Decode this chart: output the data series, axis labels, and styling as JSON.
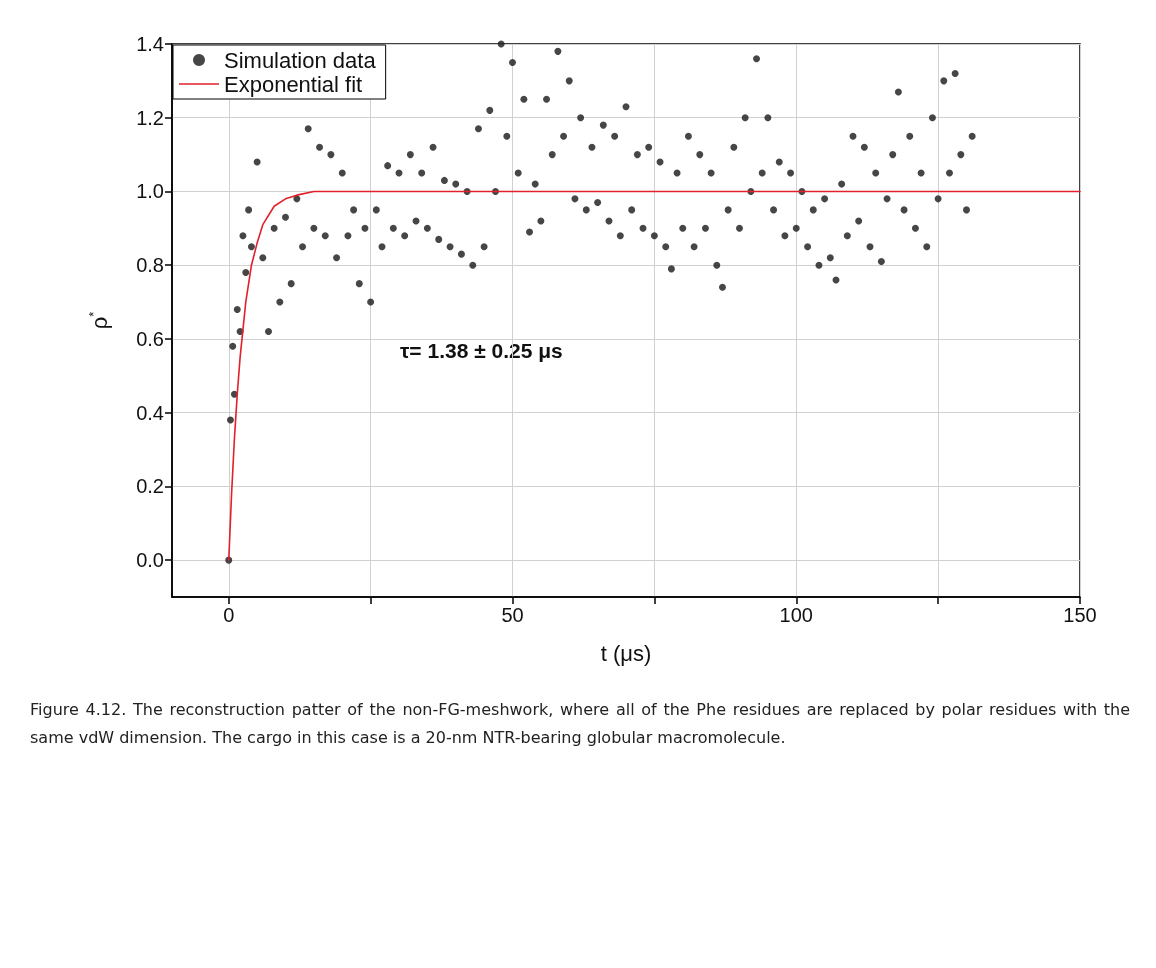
{
  "chart_data": {
    "type": "scatter",
    "xlabel": "t (μs)",
    "ylabel": "ρ$^{*}$",
    "annotations": [
      "τ= 1.38 ± 0.25 μs",
      "Figure 4.12. The reconstruction patter of the non-FG-meshwork, where all of the Phe residues are replaced by polar residues with the same vdW dimension. The cargo in this case is a 20-nm NTR-bearing globular macromolecule."
    ],
    "xlim": [
      -10,
      150
    ],
    "xticks": [
      0,
      {
        "value": 25,
        "label": null
      },
      50,
      {
        "value": 75,
        "label": null
      },
      100,
      {
        "value": 125,
        "label": null
      },
      150
    ],
    "ylim": [
      -0.1,
      1.4
    ],
    "yticks": [
      {
        "value": 0,
        "label": "0.0"
      },
      0.2,
      0.4,
      0.6,
      0.8,
      {
        "value": 1,
        "label": "1.0"
      },
      1.2,
      1.4
    ],
    "grid": true,
    "legend": "top left",
    "series": [
      {
        "name": "Simulation data",
        "marker": "circle",
        "color": "#262626",
        "x": [
          0,
          0.3,
          0.7,
          1,
          1.5,
          2,
          2.5,
          3,
          3.5,
          4,
          5,
          6,
          7,
          8,
          9,
          10,
          11,
          12,
          13,
          14,
          15,
          16,
          17,
          18,
          19,
          20,
          21,
          22,
          23,
          24,
          25,
          26,
          27,
          28,
          29,
          30,
          31,
          32,
          33,
          34,
          35,
          36,
          37,
          38,
          39,
          40,
          41,
          42,
          43,
          44,
          45,
          46,
          47,
          48,
          49,
          50,
          51,
          52,
          53,
          54,
          55,
          56,
          57,
          58,
          59,
          60,
          61,
          62,
          63,
          64,
          65,
          66,
          67,
          68,
          69,
          70,
          71,
          72,
          73,
          74,
          75,
          76,
          77,
          78,
          79,
          80,
          81,
          82,
          83,
          84,
          85,
          86,
          87,
          88,
          89,
          90,
          91,
          92,
          93,
          94,
          95,
          96,
          97,
          98,
          99,
          100,
          101,
          102,
          103,
          104,
          105,
          106,
          107,
          108,
          109,
          110,
          111,
          112,
          113,
          114,
          115,
          116,
          117,
          118,
          119,
          120,
          121,
          122,
          123,
          124,
          125,
          126,
          127,
          128,
          129,
          130,
          131
        ],
        "values": [
          0,
          0.38,
          0.58,
          0.45,
          0.68,
          0.62,
          0.88,
          0.78,
          0.95,
          0.85,
          1.08,
          0.82,
          0.62,
          0.9,
          0.7,
          0.93,
          0.75,
          0.98,
          0.85,
          1.17,
          0.9,
          1.12,
          0.88,
          1.1,
          0.82,
          1.05,
          0.88,
          0.95,
          0.75,
          0.9,
          0.7,
          0.95,
          0.85,
          1.07,
          0.9,
          1.05,
          0.88,
          1.1,
          0.92,
          1.05,
          0.9,
          1.12,
          0.87,
          1.03,
          0.85,
          1.02,
          0.83,
          1,
          0.8,
          1.17,
          0.85,
          1.22,
          1,
          1.4,
          1.15,
          1.35,
          1.05,
          1.25,
          0.89,
          1.02,
          0.92,
          1.25,
          1.1,
          1.38,
          1.15,
          1.3,
          0.98,
          1.2,
          0.95,
          1.12,
          0.97,
          1.18,
          0.92,
          1.15,
          0.88,
          1.23,
          0.95,
          1.1,
          0.9,
          1.12,
          0.88,
          1.08,
          0.85,
          0.79,
          1.05,
          0.9,
          1.15,
          0.85,
          1.1,
          0.9,
          1.05,
          0.8,
          0.74,
          0.95,
          1.12,
          0.9,
          1.2,
          1,
          1.36,
          1.05,
          1.2,
          0.95,
          1.08,
          0.88,
          1.05,
          0.9,
          1,
          0.85,
          0.95,
          0.8,
          0.98,
          0.82,
          0.76,
          1.02,
          0.88,
          1.15,
          0.92,
          1.12,
          0.85,
          1.05,
          0.81,
          0.98,
          1.1,
          1.27,
          0.95,
          1.15,
          0.9,
          1.05,
          0.85,
          1.2,
          0.98,
          1.3,
          1.05,
          1.32,
          1.1,
          0.95,
          1.15
        ]
      },
      {
        "name": "Exponential fit",
        "type": "line",
        "marker": "none",
        "line_style": "solid",
        "color": "#e0202a",
        "x": [
          0,
          0.5,
          1,
          1.5,
          2,
          3,
          4,
          5,
          6,
          8,
          10,
          12,
          15,
          150
        ],
        "values": [
          0,
          0.18,
          0.33,
          0.45,
          0.55,
          0.7,
          0.8,
          0.86,
          0.91,
          0.96,
          0.98,
          0.99,
          1,
          1
        ]
      }
    ]
  }
}
